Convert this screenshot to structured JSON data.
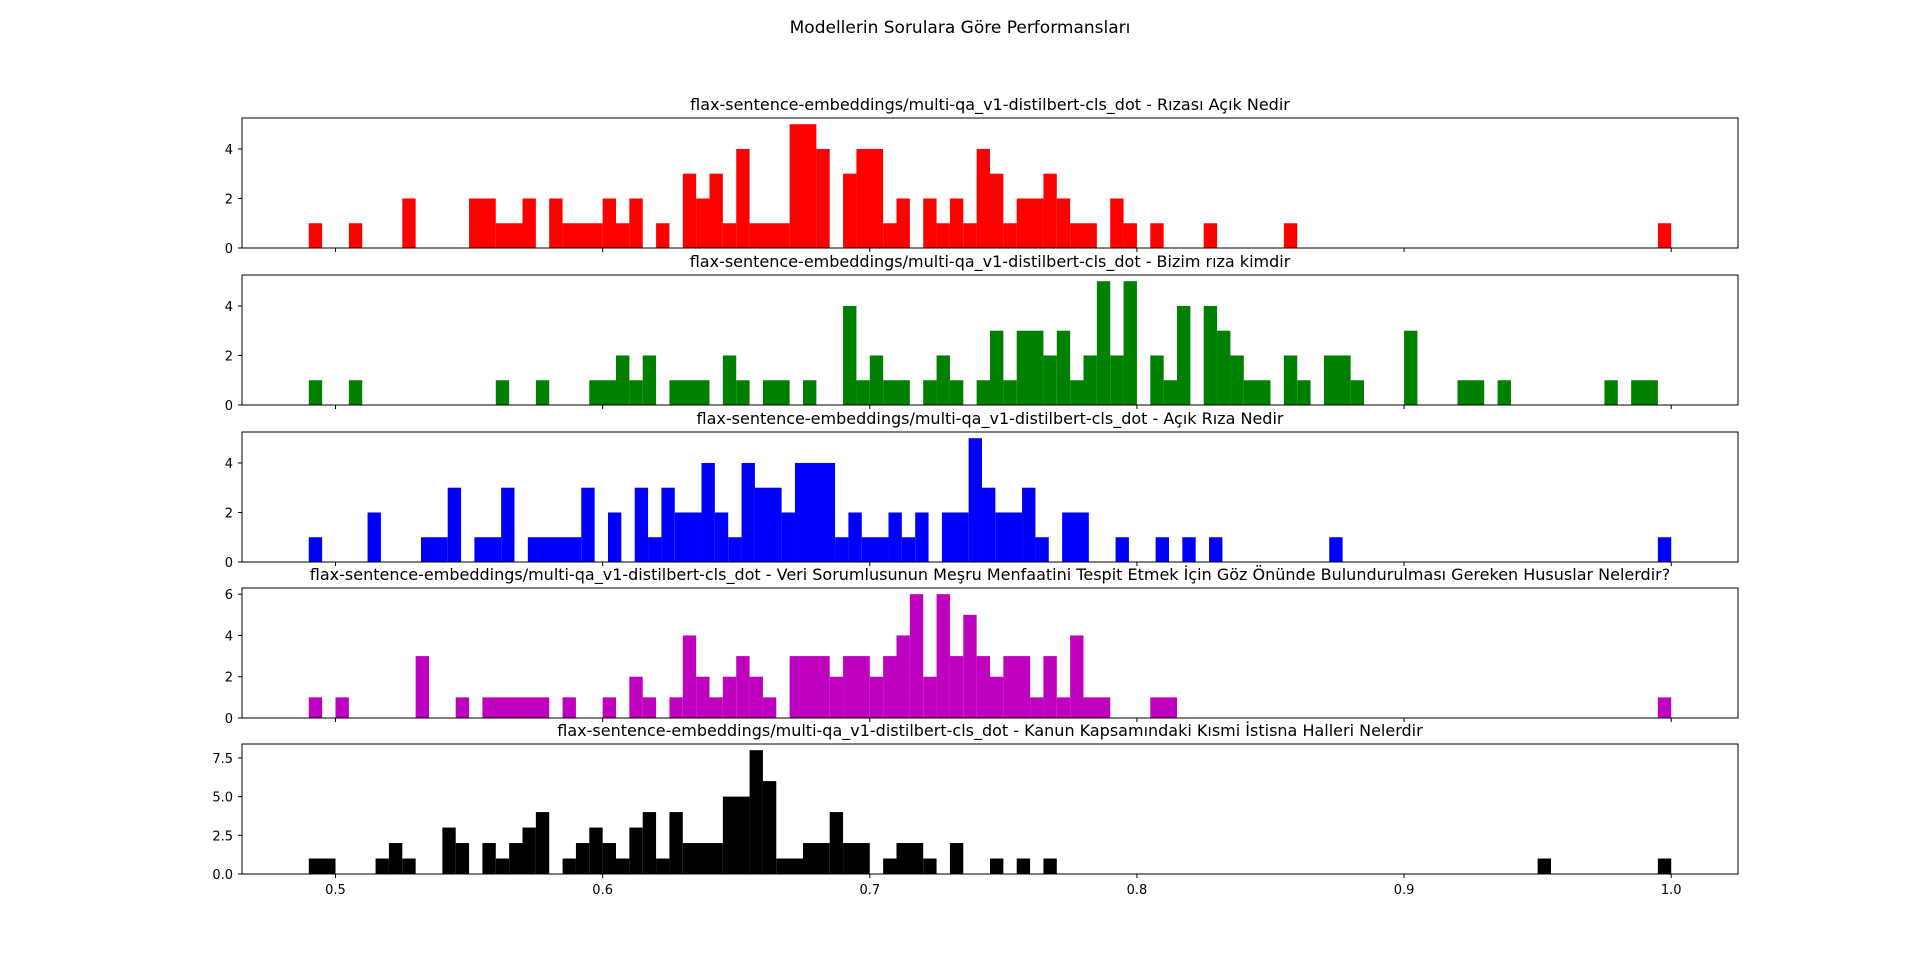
{
  "figure_title": "Modellerin Sorulara Göre Performansları",
  "chart_data": [
    {
      "type": "histogram",
      "title": "flax-sentence-embeddings/multi-qa_v1-distilbert-cls_dot - Rızası Açık Nedir",
      "color": "#ff0000",
      "bins": [
        {
          "x0": 0.49,
          "x1": 0.495,
          "count": 1
        },
        {
          "x0": 0.505,
          "x1": 0.51,
          "count": 1
        },
        {
          "x0": 0.525,
          "x1": 0.53,
          "count": 2
        },
        {
          "x0": 0.55,
          "x1": 0.56,
          "count": 2
        },
        {
          "x0": 0.56,
          "x1": 0.57,
          "count": 1
        },
        {
          "x0": 0.57,
          "x1": 0.575,
          "count": 2
        },
        {
          "x0": 0.58,
          "x1": 0.585,
          "count": 2
        },
        {
          "x0": 0.585,
          "x1": 0.6,
          "count": 1
        },
        {
          "x0": 0.6,
          "x1": 0.605,
          "count": 2
        },
        {
          "x0": 0.605,
          "x1": 0.61,
          "count": 1
        },
        {
          "x0": 0.61,
          "x1": 0.615,
          "count": 2
        },
        {
          "x0": 0.62,
          "x1": 0.625,
          "count": 1
        },
        {
          "x0": 0.63,
          "x1": 0.635,
          "count": 3
        },
        {
          "x0": 0.635,
          "x1": 0.64,
          "count": 2
        },
        {
          "x0": 0.64,
          "x1": 0.645,
          "count": 3
        },
        {
          "x0": 0.645,
          "x1": 0.65,
          "count": 1
        },
        {
          "x0": 0.65,
          "x1": 0.655,
          "count": 4
        },
        {
          "x0": 0.655,
          "x1": 0.67,
          "count": 1
        },
        {
          "x0": 0.67,
          "x1": 0.68,
          "count": 5
        },
        {
          "x0": 0.68,
          "x1": 0.685,
          "count": 4
        },
        {
          "x0": 0.69,
          "x1": 0.695,
          "count": 3
        },
        {
          "x0": 0.695,
          "x1": 0.705,
          "count": 4
        },
        {
          "x0": 0.705,
          "x1": 0.71,
          "count": 1
        },
        {
          "x0": 0.71,
          "x1": 0.715,
          "count": 2
        },
        {
          "x0": 0.72,
          "x1": 0.725,
          "count": 2
        },
        {
          "x0": 0.725,
          "x1": 0.73,
          "count": 1
        },
        {
          "x0": 0.73,
          "x1": 0.735,
          "count": 2
        },
        {
          "x0": 0.735,
          "x1": 0.74,
          "count": 1
        },
        {
          "x0": 0.74,
          "x1": 0.745,
          "count": 4
        },
        {
          "x0": 0.745,
          "x1": 0.75,
          "count": 3
        },
        {
          "x0": 0.75,
          "x1": 0.755,
          "count": 1
        },
        {
          "x0": 0.755,
          "x1": 0.765,
          "count": 2
        },
        {
          "x0": 0.765,
          "x1": 0.77,
          "count": 3
        },
        {
          "x0": 0.77,
          "x1": 0.775,
          "count": 2
        },
        {
          "x0": 0.775,
          "x1": 0.785,
          "count": 1
        },
        {
          "x0": 0.79,
          "x1": 0.795,
          "count": 2
        },
        {
          "x0": 0.795,
          "x1": 0.8,
          "count": 1
        },
        {
          "x0": 0.805,
          "x1": 0.81,
          "count": 1
        },
        {
          "x0": 0.825,
          "x1": 0.83,
          "count": 1
        },
        {
          "x0": 0.855,
          "x1": 0.86,
          "count": 1
        },
        {
          "x0": 0.995,
          "x1": 1.0,
          "count": 1
        }
      ],
      "ylim": [
        0,
        5.25
      ],
      "yticks": [
        0,
        2,
        4
      ],
      "ytick_labels": [
        "0",
        "2",
        "4"
      ]
    },
    {
      "type": "histogram",
      "title": "flax-sentence-embeddings/multi-qa_v1-distilbert-cls_dot - Bizim rıza kimdir",
      "color": "#008000",
      "bins": [
        {
          "x0": 0.49,
          "x1": 0.495,
          "count": 1
        },
        {
          "x0": 0.505,
          "x1": 0.51,
          "count": 1
        },
        {
          "x0": 0.56,
          "x1": 0.565,
          "count": 1
        },
        {
          "x0": 0.575,
          "x1": 0.58,
          "count": 1
        },
        {
          "x0": 0.595,
          "x1": 0.605,
          "count": 1
        },
        {
          "x0": 0.605,
          "x1": 0.61,
          "count": 2
        },
        {
          "x0": 0.61,
          "x1": 0.615,
          "count": 1
        },
        {
          "x0": 0.615,
          "x1": 0.62,
          "count": 2
        },
        {
          "x0": 0.625,
          "x1": 0.64,
          "count": 1
        },
        {
          "x0": 0.645,
          "x1": 0.65,
          "count": 2
        },
        {
          "x0": 0.65,
          "x1": 0.655,
          "count": 1
        },
        {
          "x0": 0.66,
          "x1": 0.67,
          "count": 1
        },
        {
          "x0": 0.675,
          "x1": 0.68,
          "count": 1
        },
        {
          "x0": 0.69,
          "x1": 0.695,
          "count": 4
        },
        {
          "x0": 0.695,
          "x1": 0.7,
          "count": 1
        },
        {
          "x0": 0.7,
          "x1": 0.705,
          "count": 2
        },
        {
          "x0": 0.705,
          "x1": 0.715,
          "count": 1
        },
        {
          "x0": 0.72,
          "x1": 0.725,
          "count": 1
        },
        {
          "x0": 0.725,
          "x1": 0.73,
          "count": 2
        },
        {
          "x0": 0.73,
          "x1": 0.735,
          "count": 1
        },
        {
          "x0": 0.74,
          "x1": 0.745,
          "count": 1
        },
        {
          "x0": 0.745,
          "x1": 0.75,
          "count": 3
        },
        {
          "x0": 0.75,
          "x1": 0.755,
          "count": 1
        },
        {
          "x0": 0.755,
          "x1": 0.765,
          "count": 3
        },
        {
          "x0": 0.765,
          "x1": 0.77,
          "count": 2
        },
        {
          "x0": 0.77,
          "x1": 0.775,
          "count": 3
        },
        {
          "x0": 0.775,
          "x1": 0.78,
          "count": 1
        },
        {
          "x0": 0.78,
          "x1": 0.785,
          "count": 2
        },
        {
          "x0": 0.785,
          "x1": 0.79,
          "count": 5
        },
        {
          "x0": 0.79,
          "x1": 0.795,
          "count": 2
        },
        {
          "x0": 0.795,
          "x1": 0.8,
          "count": 5
        },
        {
          "x0": 0.805,
          "x1": 0.81,
          "count": 2
        },
        {
          "x0": 0.81,
          "x1": 0.815,
          "count": 1
        },
        {
          "x0": 0.815,
          "x1": 0.82,
          "count": 4
        },
        {
          "x0": 0.825,
          "x1": 0.83,
          "count": 4
        },
        {
          "x0": 0.83,
          "x1": 0.835,
          "count": 3
        },
        {
          "x0": 0.835,
          "x1": 0.84,
          "count": 2
        },
        {
          "x0": 0.84,
          "x1": 0.85,
          "count": 1
        },
        {
          "x0": 0.855,
          "x1": 0.86,
          "count": 2
        },
        {
          "x0": 0.86,
          "x1": 0.865,
          "count": 1
        },
        {
          "x0": 0.87,
          "x1": 0.88,
          "count": 2
        },
        {
          "x0": 0.88,
          "x1": 0.885,
          "count": 1
        },
        {
          "x0": 0.9,
          "x1": 0.905,
          "count": 3
        },
        {
          "x0": 0.92,
          "x1": 0.93,
          "count": 1
        },
        {
          "x0": 0.935,
          "x1": 0.94,
          "count": 1
        },
        {
          "x0": 0.975,
          "x1": 0.98,
          "count": 1
        },
        {
          "x0": 0.985,
          "x1": 0.995,
          "count": 1
        }
      ],
      "ylim": [
        0,
        5.25
      ],
      "yticks": [
        0,
        2,
        4
      ],
      "ytick_labels": [
        "0",
        "2",
        "4"
      ]
    },
    {
      "type": "histogram",
      "title": "flax-sentence-embeddings/multi-qa_v1-distilbert-cls_dot - Açık Rıza Nedir",
      "color": "#0000ff",
      "bins": [
        {
          "x0": 0.49,
          "x1": 0.495,
          "count": 1
        },
        {
          "x0": 0.512,
          "x1": 0.517,
          "count": 2
        },
        {
          "x0": 0.532,
          "x1": 0.542,
          "count": 1
        },
        {
          "x0": 0.542,
          "x1": 0.547,
          "count": 3
        },
        {
          "x0": 0.552,
          "x1": 0.562,
          "count": 1
        },
        {
          "x0": 0.562,
          "x1": 0.567,
          "count": 3
        },
        {
          "x0": 0.572,
          "x1": 0.592,
          "count": 1
        },
        {
          "x0": 0.592,
          "x1": 0.597,
          "count": 3
        },
        {
          "x0": 0.602,
          "x1": 0.607,
          "count": 2
        },
        {
          "x0": 0.612,
          "x1": 0.617,
          "count": 3
        },
        {
          "x0": 0.617,
          "x1": 0.622,
          "count": 1
        },
        {
          "x0": 0.622,
          "x1": 0.627,
          "count": 3
        },
        {
          "x0": 0.627,
          "x1": 0.637,
          "count": 2
        },
        {
          "x0": 0.637,
          "x1": 0.642,
          "count": 4
        },
        {
          "x0": 0.642,
          "x1": 0.647,
          "count": 2
        },
        {
          "x0": 0.647,
          "x1": 0.652,
          "count": 1
        },
        {
          "x0": 0.652,
          "x1": 0.657,
          "count": 4
        },
        {
          "x0": 0.657,
          "x1": 0.667,
          "count": 3
        },
        {
          "x0": 0.667,
          "x1": 0.672,
          "count": 2
        },
        {
          "x0": 0.672,
          "x1": 0.687,
          "count": 4
        },
        {
          "x0": 0.687,
          "x1": 0.692,
          "count": 1
        },
        {
          "x0": 0.692,
          "x1": 0.697,
          "count": 2
        },
        {
          "x0": 0.697,
          "x1": 0.707,
          "count": 1
        },
        {
          "x0": 0.707,
          "x1": 0.712,
          "count": 2
        },
        {
          "x0": 0.712,
          "x1": 0.717,
          "count": 1
        },
        {
          "x0": 0.717,
          "x1": 0.722,
          "count": 2
        },
        {
          "x0": 0.727,
          "x1": 0.737,
          "count": 2
        },
        {
          "x0": 0.737,
          "x1": 0.742,
          "count": 5
        },
        {
          "x0": 0.742,
          "x1": 0.747,
          "count": 3
        },
        {
          "x0": 0.747,
          "x1": 0.757,
          "count": 2
        },
        {
          "x0": 0.757,
          "x1": 0.762,
          "count": 3
        },
        {
          "x0": 0.762,
          "x1": 0.767,
          "count": 1
        },
        {
          "x0": 0.772,
          "x1": 0.782,
          "count": 2
        },
        {
          "x0": 0.792,
          "x1": 0.797,
          "count": 1
        },
        {
          "x0": 0.807,
          "x1": 0.812,
          "count": 1
        },
        {
          "x0": 0.817,
          "x1": 0.822,
          "count": 1
        },
        {
          "x0": 0.827,
          "x1": 0.832,
          "count": 1
        },
        {
          "x0": 0.872,
          "x1": 0.877,
          "count": 1
        },
        {
          "x0": 0.995,
          "x1": 1.0,
          "count": 1
        }
      ],
      "ylim": [
        0,
        5.25
      ],
      "yticks": [
        0,
        2,
        4
      ],
      "ytick_labels": [
        "0",
        "2",
        "4"
      ]
    },
    {
      "type": "histogram",
      "title": "flax-sentence-embeddings/multi-qa_v1-distilbert-cls_dot - Veri Sorumlusunun Meşru Menfaatini Tespit Etmek İçin Göz Önünde Bulundurulması Gereken Hususlar Nelerdir?",
      "color": "#bf00bf",
      "bins": [
        {
          "x0": 0.49,
          "x1": 0.495,
          "count": 1
        },
        {
          "x0": 0.5,
          "x1": 0.505,
          "count": 1
        },
        {
          "x0": 0.53,
          "x1": 0.535,
          "count": 3
        },
        {
          "x0": 0.545,
          "x1": 0.55,
          "count": 1
        },
        {
          "x0": 0.555,
          "x1": 0.58,
          "count": 1
        },
        {
          "x0": 0.585,
          "x1": 0.59,
          "count": 1
        },
        {
          "x0": 0.6,
          "x1": 0.605,
          "count": 1
        },
        {
          "x0": 0.61,
          "x1": 0.615,
          "count": 2
        },
        {
          "x0": 0.615,
          "x1": 0.62,
          "count": 1
        },
        {
          "x0": 0.625,
          "x1": 0.63,
          "count": 1
        },
        {
          "x0": 0.63,
          "x1": 0.635,
          "count": 4
        },
        {
          "x0": 0.635,
          "x1": 0.64,
          "count": 2
        },
        {
          "x0": 0.64,
          "x1": 0.645,
          "count": 1
        },
        {
          "x0": 0.645,
          "x1": 0.65,
          "count": 2
        },
        {
          "x0": 0.65,
          "x1": 0.655,
          "count": 3
        },
        {
          "x0": 0.655,
          "x1": 0.66,
          "count": 2
        },
        {
          "x0": 0.66,
          "x1": 0.665,
          "count": 1
        },
        {
          "x0": 0.67,
          "x1": 0.685,
          "count": 3
        },
        {
          "x0": 0.685,
          "x1": 0.69,
          "count": 2
        },
        {
          "x0": 0.69,
          "x1": 0.7,
          "count": 3
        },
        {
          "x0": 0.7,
          "x1": 0.705,
          "count": 2
        },
        {
          "x0": 0.705,
          "x1": 0.71,
          "count": 3
        },
        {
          "x0": 0.71,
          "x1": 0.715,
          "count": 4
        },
        {
          "x0": 0.715,
          "x1": 0.72,
          "count": 6
        },
        {
          "x0": 0.72,
          "x1": 0.725,
          "count": 2
        },
        {
          "x0": 0.725,
          "x1": 0.73,
          "count": 6
        },
        {
          "x0": 0.73,
          "x1": 0.735,
          "count": 3
        },
        {
          "x0": 0.735,
          "x1": 0.74,
          "count": 5
        },
        {
          "x0": 0.74,
          "x1": 0.745,
          "count": 3
        },
        {
          "x0": 0.745,
          "x1": 0.75,
          "count": 2
        },
        {
          "x0": 0.75,
          "x1": 0.76,
          "count": 3
        },
        {
          "x0": 0.76,
          "x1": 0.765,
          "count": 1
        },
        {
          "x0": 0.765,
          "x1": 0.77,
          "count": 3
        },
        {
          "x0": 0.77,
          "x1": 0.775,
          "count": 1
        },
        {
          "x0": 0.775,
          "x1": 0.78,
          "count": 4
        },
        {
          "x0": 0.78,
          "x1": 0.79,
          "count": 1
        },
        {
          "x0": 0.805,
          "x1": 0.815,
          "count": 1
        },
        {
          "x0": 0.995,
          "x1": 1.0,
          "count": 1
        }
      ],
      "ylim": [
        0,
        6.3
      ],
      "yticks": [
        0,
        2,
        4,
        6
      ],
      "ytick_labels": [
        "0",
        "2",
        "4",
        "6"
      ]
    },
    {
      "type": "histogram",
      "title": "flax-sentence-embeddings/multi-qa_v1-distilbert-cls_dot - Kanun Kapsamındaki Kısmi İstisna Halleri Nelerdir",
      "color": "#000000",
      "bins": [
        {
          "x0": 0.49,
          "x1": 0.5,
          "count": 1
        },
        {
          "x0": 0.515,
          "x1": 0.52,
          "count": 1
        },
        {
          "x0": 0.52,
          "x1": 0.525,
          "count": 2
        },
        {
          "x0": 0.525,
          "x1": 0.53,
          "count": 1
        },
        {
          "x0": 0.54,
          "x1": 0.545,
          "count": 3
        },
        {
          "x0": 0.545,
          "x1": 0.55,
          "count": 2
        },
        {
          "x0": 0.555,
          "x1": 0.56,
          "count": 2
        },
        {
          "x0": 0.56,
          "x1": 0.565,
          "count": 1
        },
        {
          "x0": 0.565,
          "x1": 0.57,
          "count": 2
        },
        {
          "x0": 0.57,
          "x1": 0.575,
          "count": 3
        },
        {
          "x0": 0.575,
          "x1": 0.58,
          "count": 4
        },
        {
          "x0": 0.585,
          "x1": 0.59,
          "count": 1
        },
        {
          "x0": 0.59,
          "x1": 0.595,
          "count": 2
        },
        {
          "x0": 0.595,
          "x1": 0.6,
          "count": 3
        },
        {
          "x0": 0.6,
          "x1": 0.605,
          "count": 2
        },
        {
          "x0": 0.605,
          "x1": 0.61,
          "count": 1
        },
        {
          "x0": 0.61,
          "x1": 0.615,
          "count": 3
        },
        {
          "x0": 0.615,
          "x1": 0.62,
          "count": 4
        },
        {
          "x0": 0.62,
          "x1": 0.625,
          "count": 1
        },
        {
          "x0": 0.625,
          "x1": 0.63,
          "count": 4
        },
        {
          "x0": 0.63,
          "x1": 0.645,
          "count": 2
        },
        {
          "x0": 0.645,
          "x1": 0.655,
          "count": 5
        },
        {
          "x0": 0.655,
          "x1": 0.66,
          "count": 8
        },
        {
          "x0": 0.66,
          "x1": 0.665,
          "count": 6
        },
        {
          "x0": 0.665,
          "x1": 0.675,
          "count": 1
        },
        {
          "x0": 0.675,
          "x1": 0.685,
          "count": 2
        },
        {
          "x0": 0.685,
          "x1": 0.69,
          "count": 4
        },
        {
          "x0": 0.69,
          "x1": 0.7,
          "count": 2
        },
        {
          "x0": 0.705,
          "x1": 0.71,
          "count": 1
        },
        {
          "x0": 0.71,
          "x1": 0.72,
          "count": 2
        },
        {
          "x0": 0.72,
          "x1": 0.725,
          "count": 1
        },
        {
          "x0": 0.73,
          "x1": 0.735,
          "count": 2
        },
        {
          "x0": 0.745,
          "x1": 0.75,
          "count": 1
        },
        {
          "x0": 0.755,
          "x1": 0.76,
          "count": 1
        },
        {
          "x0": 0.765,
          "x1": 0.77,
          "count": 1
        },
        {
          "x0": 0.95,
          "x1": 0.955,
          "count": 1
        },
        {
          "x0": 0.995,
          "x1": 1.0,
          "count": 1
        }
      ],
      "ylim": [
        0,
        8.4
      ],
      "yticks": [
        0,
        2.5,
        5.0,
        7.5
      ],
      "ytick_labels": [
        "0.0",
        "2.5",
        "5.0",
        "7.5"
      ],
      "xlim": [
        0.465,
        1.025
      ],
      "xticks": [
        0.5,
        0.6,
        0.7,
        0.8,
        0.9,
        1.0
      ],
      "xtick_labels": [
        "0.5",
        "0.6",
        "0.7",
        "0.8",
        "0.9",
        "1.0"
      ]
    }
  ]
}
